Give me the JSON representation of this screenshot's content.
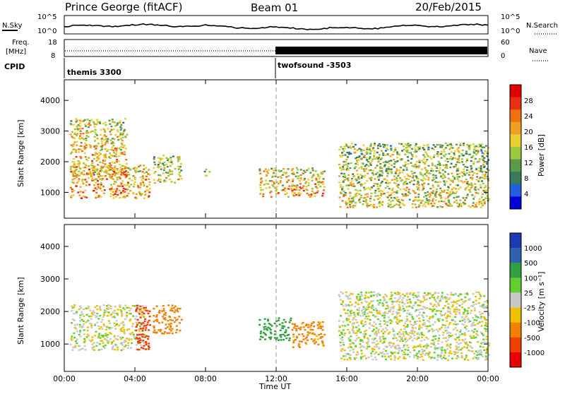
{
  "header": {
    "title": "Prince George (fitACF)",
    "beam": "Beam 01",
    "date": "20/Feb/2015"
  },
  "noise_panel": {
    "left_label": "N.Sky",
    "right_label": "N.Search",
    "left_ticks": [
      "10^5",
      "10^0"
    ],
    "right_ticks": [
      "10^5",
      "10^0"
    ]
  },
  "freq_panel": {
    "left_label_1": "Freq.",
    "left_label_2": "[MHz]",
    "right_label": "Nave",
    "left_ticks": [
      "18",
      "8"
    ],
    "right_ticks": [
      "60",
      "0"
    ],
    "freq_before_mhz": 11,
    "nave_after": 30
  },
  "cpid": {
    "label": "CPID",
    "segments": [
      {
        "name": "themis 3300",
        "start": "00:00"
      },
      {
        "name": "twofsound -3503",
        "start": "12:00"
      }
    ]
  },
  "power_panel": {
    "ylabel": "Slant Range [km]",
    "yticks": [
      "1000",
      "2000",
      "3000",
      "4000"
    ],
    "colorbar_label": "Power [dB]",
    "colorbar_ticks": [
      "28",
      "24",
      "20",
      "16",
      "12",
      "8",
      "4"
    ],
    "colors": [
      "#0000d8",
      "#2060e0",
      "#3a7a5a",
      "#5a9a4a",
      "#9ac83a",
      "#e8d030",
      "#f0a020",
      "#f07010",
      "#e83010",
      "#e00000"
    ]
  },
  "velocity_panel": {
    "ylabel": "Slant Range [km]",
    "yticks": [
      "1000",
      "2000",
      "3000",
      "4000"
    ],
    "colorbar_label": "Velocity [m s⁻¹]",
    "colorbar_ticks": [
      "1000",
      "500",
      "100",
      "25",
      "-25",
      "-100",
      "-500",
      "-1000"
    ],
    "colors": [
      "#1c3ab4",
      "#3060b0",
      "#30a040",
      "#60d030",
      "#c8c8c8",
      "#f0c000",
      "#f08000",
      "#f04000",
      "#e80000"
    ]
  },
  "x_axis": {
    "label": "Time UT",
    "ticks": [
      "00:00",
      "04:00",
      "08:00",
      "12:00",
      "16:00",
      "20:00",
      "00:00"
    ]
  },
  "chart_data": {
    "type": "heatmap",
    "x_range_hours": [
      0,
      24
    ],
    "y_range_km": [
      180,
      4650
    ],
    "marker_hour": 12,
    "power_regions": [
      {
        "t": [
          0.3,
          4.8
        ],
        "r": [
          800,
          1900
        ],
        "db": 24
      },
      {
        "t": [
          0.3,
          3.5
        ],
        "r": [
          1500,
          3400
        ],
        "db": 22
      },
      {
        "t": [
          5.0,
          6.6
        ],
        "r": [
          1300,
          2200
        ],
        "db": 18
      },
      {
        "t": [
          7.8,
          8.2
        ],
        "r": [
          1400,
          1800
        ],
        "db": 16
      },
      {
        "t": [
          11.0,
          14.7
        ],
        "r": [
          850,
          1800
        ],
        "db": 22
      },
      {
        "t": [
          15.5,
          24.0
        ],
        "r": [
          500,
          2600
        ],
        "db": 18
      }
    ],
    "velocity_regions": [
      {
        "t": [
          0.3,
          4.5
        ],
        "r": [
          800,
          2200
        ],
        "v": 0
      },
      {
        "t": [
          4.0,
          4.8
        ],
        "r": [
          800,
          2200
        ],
        "v": -800
      },
      {
        "t": [
          5.0,
          6.6
        ],
        "r": [
          1300,
          2200
        ],
        "v": -400
      },
      {
        "t": [
          11.0,
          12.8
        ],
        "r": [
          1100,
          1800
        ],
        "v": 300
      },
      {
        "t": [
          12.8,
          14.7
        ],
        "r": [
          900,
          1700
        ],
        "v": -150
      },
      {
        "t": [
          15.5,
          24.0
        ],
        "r": [
          500,
          2600
        ],
        "v": 0
      }
    ]
  }
}
